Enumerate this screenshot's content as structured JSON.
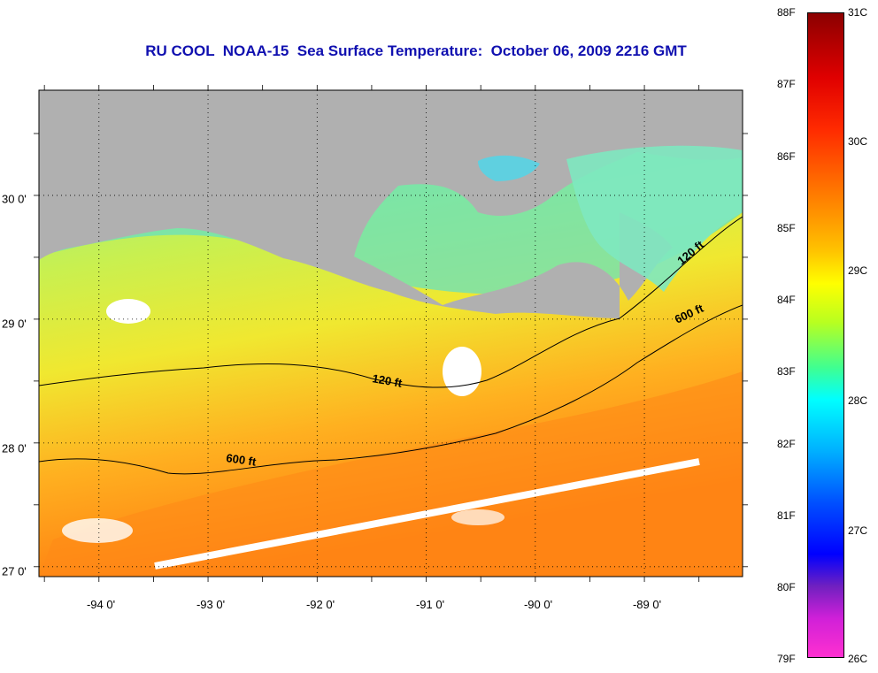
{
  "title": "RU COOL  NOAA-15  Sea Surface Temperature:  October 06, 2009 2216 GMT",
  "x_axis_labels": [
    "-94 0'",
    "-93 0'",
    "-92 0'",
    "-91 0'",
    "-90 0'",
    "-89 0'"
  ],
  "y_axis_labels": [
    "30 0'",
    "29 0'",
    "28 0'",
    "27 0'"
  ],
  "isobath_labels": {
    "shelf_west": "120 ft",
    "shelf_east": "120 ft",
    "slope_west": "600 ft",
    "slope_east": "600 ft"
  },
  "colorbar": {
    "fahrenheit": [
      "88F",
      "87F",
      "86F",
      "85F",
      "84F",
      "83F",
      "82F",
      "81F",
      "80F",
      "79F"
    ],
    "celsius": [
      "31C",
      "30C",
      "29C",
      "28C",
      "27C",
      "26C"
    ]
  },
  "colors": {
    "land": "#b0b0b0",
    "title": "#1010b0",
    "ocean_warm": "#ff8c00",
    "ocean_cool": "#40e0a0"
  },
  "map_extent": {
    "lon_min": -94.55,
    "lon_max": -88.1,
    "lat_min": 26.92,
    "lat_max": 30.85
  }
}
